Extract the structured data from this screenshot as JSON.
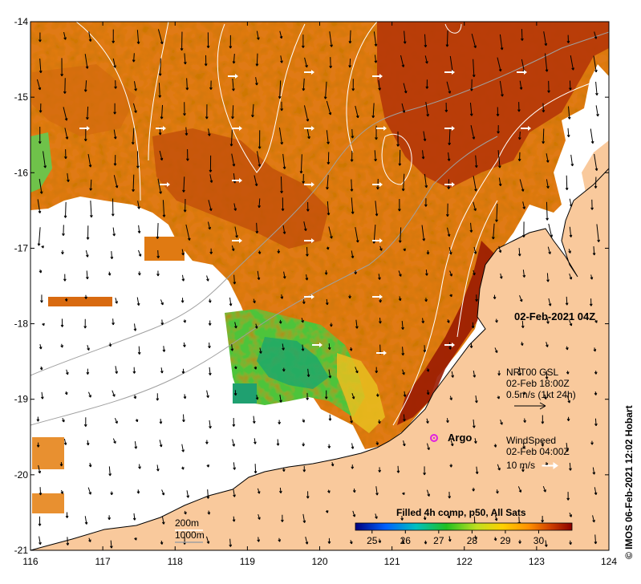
{
  "map": {
    "lon_range": [
      116,
      124
    ],
    "lat_range": [
      -21,
      -14
    ],
    "x_ticks": [
      "116",
      "117",
      "118",
      "119",
      "120",
      "121",
      "122",
      "123",
      "124"
    ],
    "y_ticks": [
      "-14",
      "-15",
      "-16",
      "-17",
      "-18",
      "-19",
      "-20",
      "-21"
    ],
    "colors": {
      "land": "#f9c99c",
      "nodata": "#ffffff",
      "contour_200m": "#ffffff",
      "contour_1000m": "#a8a8a8",
      "argo": "#e020e0"
    }
  },
  "annotations": {
    "date_label": "02-Feb-2021 04Z",
    "current_source": "NRT00 GSL",
    "current_time": "02-Feb 18:00Z",
    "current_scale": "0.5m/s (1kt 24h)",
    "wind_title": "WindSpeed",
    "wind_time": "02-Feb 04:00Z",
    "wind_scale": "10 m/s",
    "argo_label": "Argo",
    "contour_200m_label": "200m",
    "contour_1000m_label": "1000m"
  },
  "colorbar": {
    "title": "Filled 4h comp, p50, All Sats",
    "range": [
      24.5,
      31
    ],
    "ticks": [
      "25",
      "26",
      "27",
      "28",
      "29",
      "30"
    ],
    "tick_values": [
      25,
      26,
      27,
      28,
      29,
      30
    ],
    "stops": [
      "#00007f",
      "#0060ff",
      "#00c0c0",
      "#20c020",
      "#c0e020",
      "#ffd000",
      "#ff9000",
      "#d04000",
      "#8b0000"
    ]
  },
  "credit": "© IMOS 06-Feb-2021 12:02 Hobart"
}
